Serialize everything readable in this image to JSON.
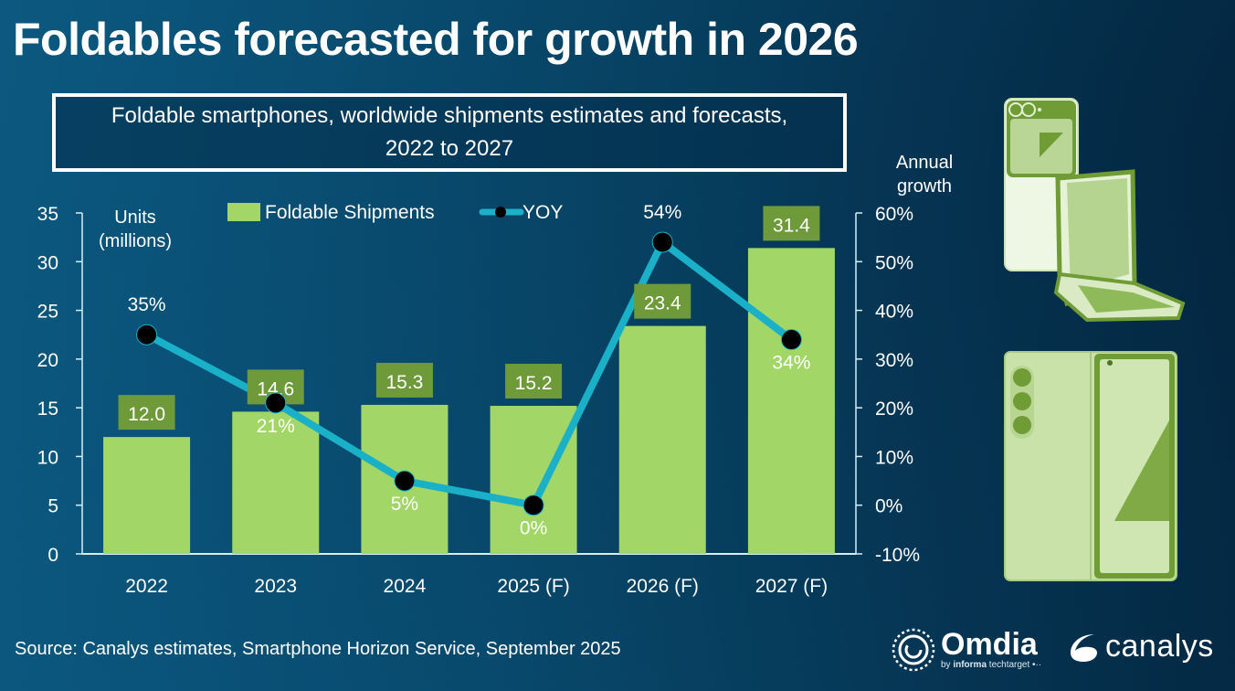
{
  "header": {
    "title": "Foldables forecasted for growth in 2026",
    "subtitle": "Foldable smartphones, worldwide shipments estimates and forecasts, 2022 to 2027"
  },
  "footer": {
    "source": "Source: Canalys estimates, Smartphone Horizon Service, September 2025",
    "logos": {
      "omdia": "Omdia",
      "omdia_tagline_prefix": "by",
      "omdia_tagline_brand": "informa",
      "omdia_tagline_suffix": "techtarget",
      "canalys": "canalys"
    }
  },
  "colors": {
    "bar": "#a2d667",
    "bar_label_bg": "#6e9a3a",
    "line": "#1ab1c8",
    "marker": "#000000",
    "axis": "#d8eef5"
  },
  "chart_data": {
    "type": "bar",
    "title": "Foldable smartphones, worldwide shipments estimates and forecasts, 2022 to 2027",
    "categories": [
      "2022",
      "2023",
      "2024",
      "2025 (F)",
      "2026 (F)",
      "2027 (F)"
    ],
    "series": [
      {
        "name": "Foldable Shipments",
        "type": "bar",
        "axis": "left",
        "values": [
          12.0,
          14.6,
          15.3,
          15.2,
          23.4,
          31.4
        ],
        "labels": [
          "12.0",
          "14.6",
          "15.3",
          "15.2",
          "23.4",
          "31.4"
        ]
      },
      {
        "name": "YOY",
        "type": "line",
        "axis": "right",
        "values": [
          35,
          21,
          5,
          0,
          54,
          34
        ],
        "labels": [
          "35%",
          "21%",
          "5%",
          "0%",
          "54%",
          "34%"
        ],
        "label_positions": [
          "above",
          "below",
          "below",
          "below",
          "above",
          "below"
        ]
      }
    ],
    "ylabel_left": [
      "Units",
      "(millions)"
    ],
    "ylabel_right": [
      "Annual",
      "growth"
    ],
    "ylim_left": [
      0,
      35
    ],
    "yticks_left": [
      0,
      5,
      10,
      15,
      20,
      25,
      30,
      35
    ],
    "ylim_right": [
      -10,
      60
    ],
    "yticks_right": [
      "-10%",
      "0%",
      "10%",
      "20%",
      "30%",
      "40%",
      "50%",
      "60%"
    ],
    "yticks_right_values": [
      -10,
      0,
      10,
      20,
      30,
      40,
      50,
      60
    ],
    "grid": false,
    "legend": {
      "placement": "top-center",
      "items": [
        "Foldable Shipments",
        "YOY"
      ]
    }
  }
}
